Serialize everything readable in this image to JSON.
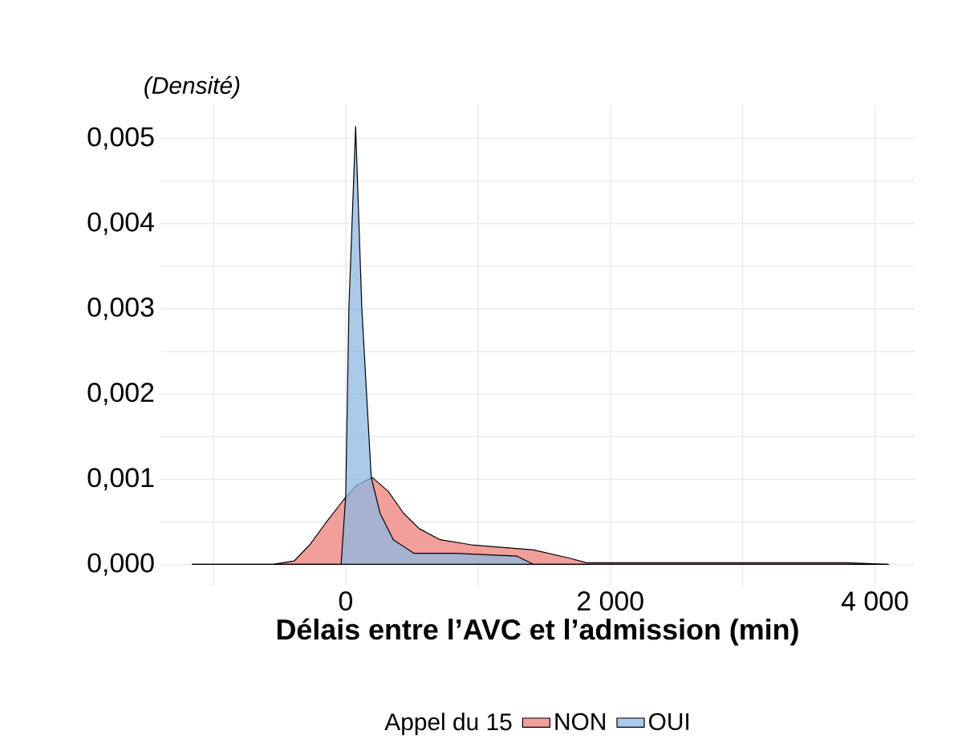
{
  "chart_data": {
    "type": "area",
    "ylabel": "(Densité)",
    "xlabel": "Délais entre l’AVC et l’admission (min)",
    "legend_title": "Appel du 15",
    "legend": "bottom",
    "grid": true,
    "xlim": [
      -1400,
      4300
    ],
    "ylim": [
      -0.00025,
      0.0054
    ],
    "xticks": [
      {
        "value": -1000,
        "label": null
      },
      {
        "value": 0,
        "label": "0"
      },
      {
        "value": 1000,
        "label": null
      },
      {
        "value": 2000,
        "label": "2 000"
      },
      {
        "value": 3000,
        "label": null
      },
      {
        "value": 4000,
        "label": "4 000"
      }
    ],
    "yticks": [
      {
        "value": 0,
        "label": "0,000"
      },
      {
        "value": 0.0005,
        "label": null
      },
      {
        "value": 0.001,
        "label": "0,001"
      },
      {
        "value": 0.0015,
        "label": null
      },
      {
        "value": 0.002,
        "label": "0,002"
      },
      {
        "value": 0.0025,
        "label": null
      },
      {
        "value": 0.003,
        "label": "0,003"
      },
      {
        "value": 0.0035,
        "label": null
      },
      {
        "value": 0.004,
        "label": "0,004"
      },
      {
        "value": 0.0045,
        "label": null
      },
      {
        "value": 0.005,
        "label": "0,005"
      }
    ],
    "series": [
      {
        "name": "NON",
        "color": "#ee7f7a",
        "x": [
          -1160,
          -550,
          -390,
          -272,
          -154,
          -15,
          83,
          201,
          320,
          438,
          556,
          714,
          950,
          1345,
          1420,
          1700,
          1820,
          2300,
          3400,
          3790,
          4100
        ],
        "values": [
          0,
          0,
          4e-05,
          0.00023,
          0.00048,
          0.00076,
          0.00093,
          0.00102,
          0.00086,
          0.0006,
          0.00042,
          0.00029,
          0.00023,
          0.00018,
          0.00017,
          7e-05,
          2e-05,
          2e-05,
          2e-05,
          2e-05,
          0
        ]
      },
      {
        "name": "OUI",
        "color": "#8db8e2",
        "x": [
          -1160,
          -35,
          0,
          24,
          75,
          122,
          193,
          260,
          360,
          517,
          830,
          1266,
          1290,
          1420,
          4100
        ],
        "values": [
          0,
          0,
          0.0008,
          0.003,
          0.00514,
          0.003,
          0.00102,
          0.0006,
          0.00029,
          0.00013,
          0.00013,
          0.0001,
          0.0001,
          0,
          0
        ]
      }
    ]
  }
}
